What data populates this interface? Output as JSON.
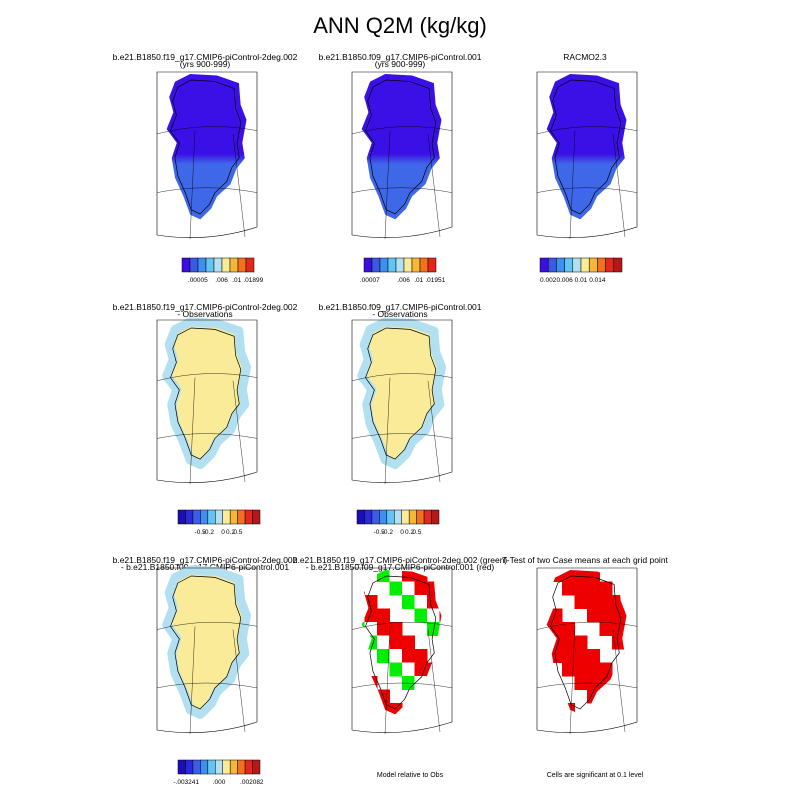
{
  "title": "ANN Q2M (kg/kg)",
  "panels": [
    {
      "title": [
        "b.e21.B1850.f19_g17.CMIP6-piControl-2deg.002",
        "(yrs 900-999)"
      ],
      "colorbar": [
        ".00005",
        ".006",
        ".01",
        ".01899"
      ]
    },
    {
      "title": [
        "b.e21.B1850.f09_g17.CMIP6-piControl.001",
        "(yrs 900-999)"
      ],
      "colorbar": [
        ".00007",
        ".006",
        ".01",
        ".01951"
      ]
    },
    {
      "title": [
        "RACMO2.3"
      ],
      "colorbar": [
        "0.002",
        "0.006",
        "0.01",
        "0.014"
      ]
    },
    {
      "title": [
        "b.e21.B1850.f19_g17.CMIP6-piControl-2deg.002",
        "- Observations"
      ],
      "colorbar": [
        "-0.5",
        "-0.2",
        "0",
        "0.2",
        "0.5"
      ]
    },
    {
      "title": [
        "b.e21.B1850.f09_g17.CMIP6-piControl.001",
        "- Observations"
      ],
      "colorbar": [
        "-0.5",
        "-0.2",
        "0",
        "0.2",
        "0.5"
      ]
    },
    {
      "title": [
        "b.e21.B1850.f19_g17.CMIP6-piControl-2deg.002",
        "- b.e21.B1850.f09_g17.CMIP6-piControl.001"
      ],
      "colorbar": [
        "-.003241",
        ".000",
        ".002082"
      ]
    },
    {
      "title": [
        "b.e21.B1850.f19_g17.CMIP6-piControl-2deg.002 (green)",
        "- b.e21.B1850.f09_g17.CMIP6-piControl.001 (red)"
      ],
      "note": "Model relative to Obs"
    },
    {
      "title": [
        "T-Test of two Case means at each grid point"
      ],
      "note": "Cells are significant at 0.1 level"
    }
  ]
}
